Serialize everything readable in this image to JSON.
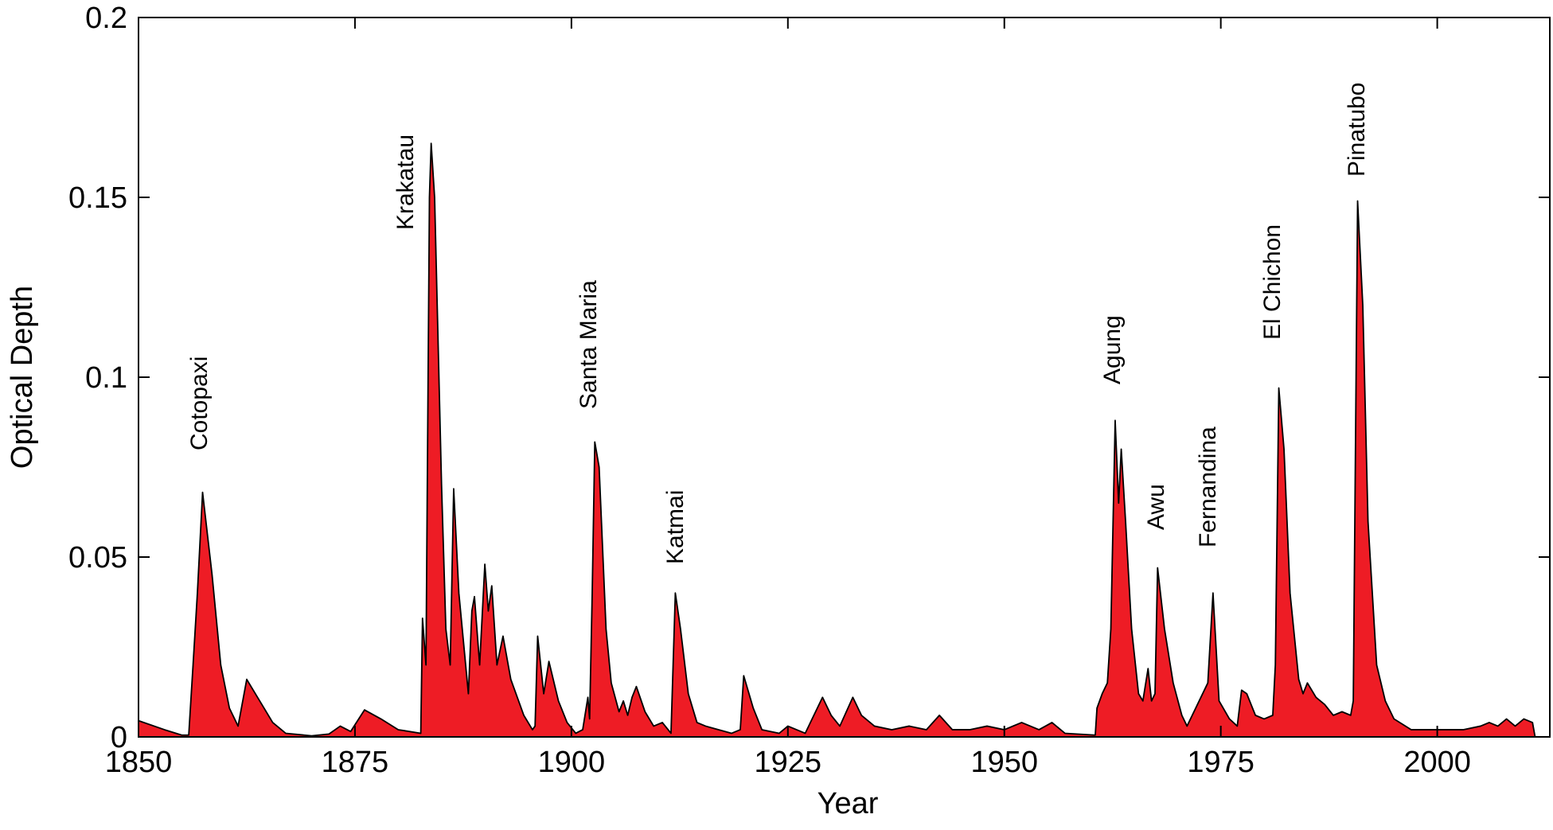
{
  "chart_data": {
    "type": "area",
    "xlabel": "Year",
    "ylabel": "Optical Depth",
    "xlim": [
      1850,
      2013
    ],
    "ylim": [
      0,
      0.2
    ],
    "xticks": [
      1850,
      1875,
      1900,
      1925,
      1950,
      1975,
      2000
    ],
    "yticks": [
      0,
      0.05,
      0.1,
      0.15,
      0.2
    ],
    "color": "#ee1c25",
    "x": [
      1850,
      1853,
      1855,
      1855.8,
      1856.3,
      1856.8,
      1857.4,
      1858.5,
      1859.5,
      1860.5,
      1861.5,
      1862.5,
      1864,
      1865.5,
      1867,
      1870,
      1872,
      1873.3,
      1874.5,
      1876.1,
      1878,
      1880,
      1882.6,
      1882.8,
      1883.2,
      1883.6,
      1883.8,
      1884.2,
      1885,
      1885.5,
      1886,
      1886.4,
      1887,
      1888.1,
      1888.5,
      1888.8,
      1889.4,
      1890,
      1890.4,
      1890.8,
      1891.4,
      1892.1,
      1893,
      1894.5,
      1895.5,
      1895.8,
      1896.1,
      1896.8,
      1897.4,
      1898.5,
      1899.5,
      1900.5,
      1901.3,
      1901.9,
      1902.1,
      1902.4,
      1902.7,
      1903.2,
      1904,
      1904.6,
      1905.5,
      1906,
      1906.5,
      1907,
      1907.5,
      1908.5,
      1909.5,
      1910.5,
      1911.5,
      1912,
      1912.6,
      1913.5,
      1914.5,
      1915.5,
      1917,
      1918.5,
      1919.5,
      1919.9,
      1921,
      1922,
      1924,
      1925,
      1926,
      1927,
      1928,
      1929,
      1930,
      1931,
      1932.5,
      1933.5,
      1935,
      1937,
      1939,
      1941,
      1942.5,
      1944,
      1946,
      1948,
      1950,
      1952,
      1954,
      1955.5,
      1957,
      1960.5,
      1960.7,
      1961.3,
      1961.9,
      1962.3,
      1962.8,
      1963.2,
      1963.5,
      1964,
      1964.7,
      1965.5,
      1966,
      1966.6,
      1967,
      1967.4,
      1967.7,
      1968.5,
      1969.5,
      1970.5,
      1971.1,
      1973.5,
      1974.1,
      1974.8,
      1976,
      1976.9,
      1977.4,
      1978,
      1979,
      1980,
      1981,
      1981.3,
      1981.7,
      1982.3,
      1983,
      1984,
      1984.5,
      1985,
      1986,
      1987,
      1988,
      1989,
      1990,
      1990.3,
      1990.8,
      1991.4,
      1992,
      1993,
      1994,
      1995,
      1997,
      2000,
      2003,
      2005,
      2006,
      2007,
      2008,
      2009,
      2010,
      2011,
      2011.3
    ],
    "values": [
      0.0045,
      0.002,
      0.0005,
      0.0005,
      0.02,
      0.04,
      0.068,
      0.045,
      0.02,
      0.008,
      0.003,
      0.016,
      0.01,
      0.004,
      0.001,
      0.0003,
      0.0008,
      0.003,
      0.0015,
      0.0075,
      0.005,
      0.002,
      0.001,
      0.033,
      0.02,
      0.15,
      0.165,
      0.15,
      0.07,
      0.03,
      0.02,
      0.069,
      0.04,
      0.012,
      0.035,
      0.039,
      0.02,
      0.048,
      0.035,
      0.042,
      0.02,
      0.028,
      0.016,
      0.006,
      0.002,
      0.003,
      0.028,
      0.012,
      0.021,
      0.01,
      0.004,
      0.001,
      0.002,
      0.011,
      0.005,
      0.04,
      0.082,
      0.075,
      0.03,
      0.015,
      0.007,
      0.01,
      0.006,
      0.011,
      0.014,
      0.007,
      0.003,
      0.004,
      0.001,
      0.04,
      0.03,
      0.012,
      0.004,
      0.003,
      0.002,
      0.001,
      0.002,
      0.017,
      0.008,
      0.002,
      0.001,
      0.003,
      0.002,
      0.001,
      0.006,
      0.011,
      0.006,
      0.003,
      0.011,
      0.006,
      0.003,
      0.002,
      0.003,
      0.002,
      0.006,
      0.002,
      0.002,
      0.003,
      0.002,
      0.004,
      0.002,
      0.004,
      0.001,
      0.0005,
      0.008,
      0.012,
      0.015,
      0.03,
      0.088,
      0.065,
      0.08,
      0.06,
      0.03,
      0.012,
      0.01,
      0.019,
      0.01,
      0.012,
      0.047,
      0.03,
      0.015,
      0.006,
      0.003,
      0.015,
      0.04,
      0.01,
      0.005,
      0.003,
      0.013,
      0.012,
      0.006,
      0.005,
      0.006,
      0.02,
      0.097,
      0.08,
      0.04,
      0.016,
      0.012,
      0.015,
      0.011,
      0.009,
      0.006,
      0.007,
      0.006,
      0.01,
      0.149,
      0.12,
      0.06,
      0.02,
      0.01,
      0.005,
      0.002,
      0.002,
      0.002,
      0.003,
      0.004,
      0.003,
      0.005,
      0.003,
      0.005,
      0.004,
      0
    ],
    "annotations": [
      "Cotopaxi",
      "Krakatau",
      "Santa Maria",
      "Katmai",
      "Agung",
      "Awu",
      "Fernandina",
      "El Chichon",
      "Pinatubo"
    ]
  }
}
